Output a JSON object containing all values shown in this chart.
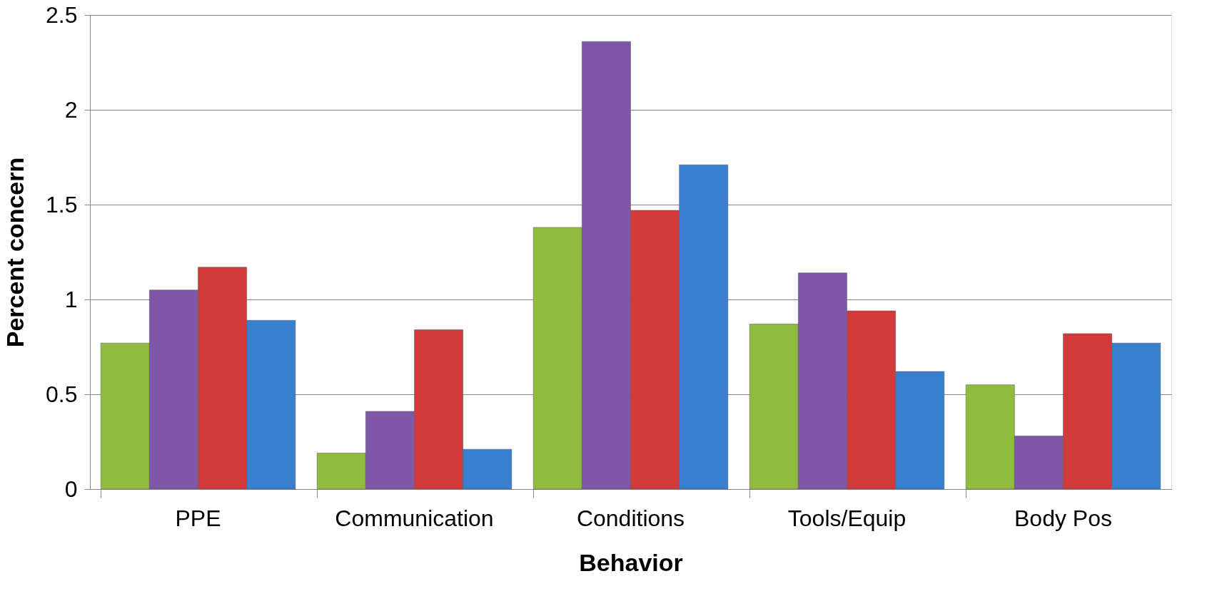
{
  "chart_data": {
    "type": "bar",
    "xlabel": "Behavior",
    "ylabel": "Percent concern",
    "categories": [
      "PPE",
      "Communication",
      "Conditions",
      "Tools/Equip",
      "Body Pos"
    ],
    "series": [
      {
        "color": "#8fbc3f",
        "values": [
          0.77,
          0.19,
          1.38,
          0.87,
          0.55
        ]
      },
      {
        "color": "#7e57a8",
        "values": [
          1.05,
          0.41,
          2.36,
          1.14,
          0.28
        ]
      },
      {
        "color": "#d03a3a",
        "values": [
          1.17,
          0.84,
          1.47,
          0.94,
          0.82
        ]
      },
      {
        "color": "#3a7fcf",
        "values": [
          0.89,
          0.21,
          1.71,
          0.62,
          0.77
        ]
      }
    ],
    "ylim": [
      0,
      2.5
    ],
    "yticks": [
      0,
      0.5,
      1,
      1.5,
      2,
      2.5
    ],
    "grid": "y"
  }
}
